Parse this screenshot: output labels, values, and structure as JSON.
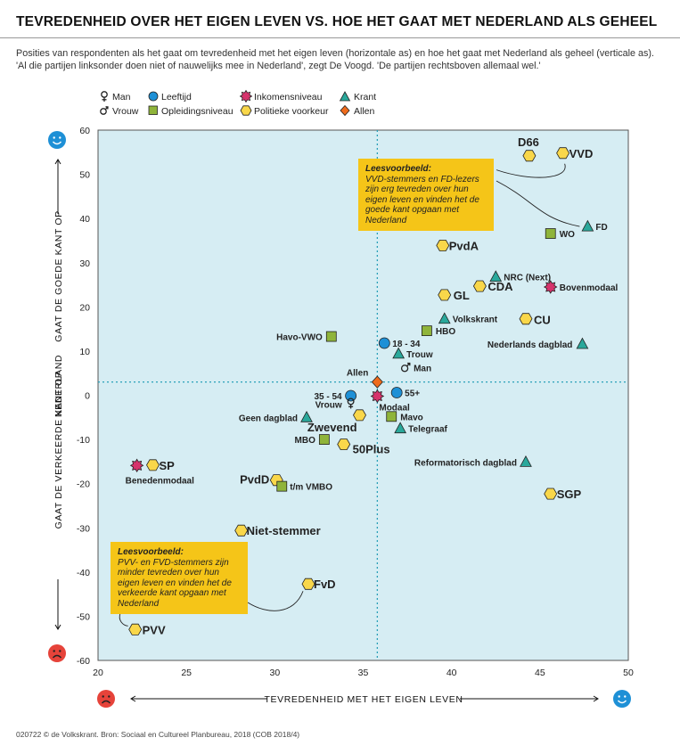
{
  "title": "TEVREDENHEID OVER HET EIGEN LEVEN VS. HOE HET GAAT MET NEDERLAND ALS GEHEEL",
  "subtitle": "Posities van respondenten als het gaat om tevredenheid met het eigen leven (horizontale as) en hoe het gaat met Nederland als geheel (verticale as). 'Al die partijen linksonder doen niet of nauwelijks mee in Nederland', zegt De Voogd. 'De partijen rechtsboven allemaal wel.'",
  "footer": "020722 © de Volkskrant. Bron: Sociaal en Cultureel Planbureau, 2018 (COB 2018/4)",
  "colors": {
    "plot_bg": "#d6edf3",
    "leeftijd": "#1e90d6",
    "inkomensniveau": "#d6336c",
    "krant": "#2aa89b",
    "opleidingsniveau": "#8fb43a",
    "politieke_voorkeur": "#f9d74a",
    "allen": "#ee6b1c",
    "note": "#f5c518",
    "smile_blue": "#1e90d6",
    "frown_red": "#e6433a"
  },
  "legend": {
    "man": "Man",
    "vrouw": "Vrouw",
    "leeftijd": "Leeftijd",
    "opleidingsniveau": "Opleidingsniveau",
    "inkomensniveau": "Inkomensniveau",
    "politieke_voorkeur": "Politieke voorkeur",
    "krant": "Krant",
    "allen": "Allen"
  },
  "notes": {
    "top": {
      "title": "Leesvoorbeeld:",
      "text": "VVD-stemmers en FD-lezers zijn erg tevreden over hun eigen leven en vinden het de goede kant opgaan met Nederland"
    },
    "bottom": {
      "title": "Leesvoorbeeld:",
      "text": "PVV- en FVD-stemmers zijn minder tevreden over hun eigen leven en vinden het de verkeerde kant opgaan met Nederland"
    }
  },
  "chart_data": {
    "type": "scatter",
    "title": "TEVREDENHEID OVER HET EIGEN LEVEN VS. HOE HET GAAT MET NEDERLAND ALS GEHEEL",
    "xlabel": "TEVREDENHEID MET HET EIGEN LEVEN",
    "ylabel_parts": [
      "GAAT DE VERKEERDE KANT OP",
      "NEDERLAND",
      "GAAT DE GOEDE KANT OP"
    ],
    "xlim": [
      20,
      50
    ],
    "ylim": [
      -60,
      60
    ],
    "xticks": [
      20,
      25,
      30,
      35,
      40,
      45,
      50
    ],
    "yticks": [
      60,
      50,
      40,
      30,
      20,
      10,
      0,
      -10,
      -20,
      -30,
      -40,
      -50,
      -60
    ],
    "reference_lines": {
      "x": 35.8,
      "y": 3
    },
    "points": [
      {
        "label": "D66",
        "category": "politieke_voorkeur",
        "x": 44.4,
        "y": 54.2,
        "size": "big",
        "lx": -1,
        "ly": -11,
        "anchor": "middle"
      },
      {
        "label": "VVD",
        "category": "politieke_voorkeur",
        "x": 46.3,
        "y": 54.8,
        "size": "big",
        "lx": 7,
        "ly": 5,
        "anchor": "start"
      },
      {
        "label": "FD",
        "category": "krant",
        "x": 47.7,
        "y": 38.2,
        "size": "small",
        "lx": 9,
        "ly": 4,
        "anchor": "start"
      },
      {
        "label": "WO",
        "category": "opleidingsniveau",
        "x": 45.6,
        "y": 36.6,
        "size": "small",
        "lx": 10,
        "ly": 4,
        "anchor": "start"
      },
      {
        "label": "PvdA",
        "category": "politieke_voorkeur",
        "x": 39.5,
        "y": 33.9,
        "size": "big",
        "lx": 7,
        "ly": 5,
        "anchor": "start"
      },
      {
        "label": "NRC (Next)",
        "category": "krant",
        "x": 42.5,
        "y": 26.8,
        "size": "small",
        "lx": 9,
        "ly": 4,
        "anchor": "start"
      },
      {
        "label": "Bovenmodaal",
        "category": "inkomensniveau",
        "x": 45.6,
        "y": 24.5,
        "size": "small",
        "lx": 10,
        "ly": 4,
        "anchor": "start"
      },
      {
        "label": "CDA",
        "category": "politieke_voorkeur",
        "x": 41.6,
        "y": 24.7,
        "size": "big",
        "lx": 9,
        "ly": 5,
        "anchor": "start"
      },
      {
        "label": "GL",
        "category": "politieke_voorkeur",
        "x": 39.6,
        "y": 22.7,
        "size": "big",
        "lx": 10,
        "ly": 5,
        "anchor": "start"
      },
      {
        "label": "CU",
        "category": "politieke_voorkeur",
        "x": 44.2,
        "y": 17.3,
        "size": "big",
        "lx": 9,
        "ly": 6,
        "anchor": "start"
      },
      {
        "label": "Volkskrant",
        "category": "krant",
        "x": 39.6,
        "y": 17.3,
        "size": "small",
        "lx": 9,
        "ly": 4,
        "anchor": "start"
      },
      {
        "label": "HBO",
        "category": "opleidingsniveau",
        "x": 38.6,
        "y": 14.6,
        "size": "small",
        "lx": 10,
        "ly": 4,
        "anchor": "start"
      },
      {
        "label": "Havo-VWO",
        "category": "opleidingsniveau",
        "x": 33.2,
        "y": 13.3,
        "size": "small",
        "lx": -10,
        "ly": 4,
        "anchor": "end"
      },
      {
        "label": "Nederlands dagblad",
        "category": "krant",
        "x": 47.4,
        "y": 11.6,
        "size": "small",
        "lx": -11,
        "ly": 4,
        "anchor": "end"
      },
      {
        "label": "18 - 34",
        "category": "leeftijd",
        "x": 36.2,
        "y": 11.8,
        "size": "small",
        "lx": 9,
        "ly": 4,
        "anchor": "start"
      },
      {
        "label": "Trouw",
        "category": "krant",
        "x": 37.0,
        "y": 9.4,
        "size": "small",
        "lx": 9,
        "ly": 4,
        "anchor": "start"
      },
      {
        "label": "Man",
        "category": "man",
        "x": 37.4,
        "y": 6.3,
        "size": "small",
        "lx": 9,
        "ly": 4,
        "anchor": "start"
      },
      {
        "label": "Allen",
        "category": "allen",
        "x": 35.8,
        "y": 3.0,
        "size": "small",
        "lx": -10,
        "ly": -7,
        "anchor": "end"
      },
      {
        "label": "35 - 54",
        "category": "leeftijd",
        "x": 34.3,
        "y": -0.1,
        "size": "small",
        "lx": -10,
        "ly": 4,
        "anchor": "end"
      },
      {
        "label": "Modaal",
        "category": "inkomensniveau",
        "x": 35.8,
        "y": -0.2,
        "size": "small",
        "lx": 2,
        "ly": 16,
        "anchor": "start"
      },
      {
        "label": "55+",
        "category": "leeftijd",
        "x": 36.9,
        "y": 0.6,
        "size": "small",
        "lx": 9,
        "ly": 4,
        "anchor": "start"
      },
      {
        "label": "Vrouw",
        "category": "vrouw",
        "x": 34.3,
        "y": -1.8,
        "size": "small",
        "lx": -10,
        "ly": 5,
        "anchor": "end"
      },
      {
        "label": "Zwevend",
        "category": "politieke_voorkeur",
        "x": 34.8,
        "y": -4.5,
        "size": "big",
        "lx": -3,
        "ly": 18,
        "anchor": "end"
      },
      {
        "label": "Geen dagblad",
        "category": "krant",
        "x": 31.8,
        "y": -5.0,
        "size": "small",
        "lx": -10,
        "ly": 4,
        "anchor": "end"
      },
      {
        "label": "Mavo",
        "category": "opleidingsniveau",
        "x": 36.6,
        "y": -4.8,
        "size": "small",
        "lx": 10,
        "ly": 4,
        "anchor": "start"
      },
      {
        "label": "Telegraaf",
        "category": "krant",
        "x": 37.1,
        "y": -7.5,
        "size": "small",
        "lx": 9,
        "ly": 4,
        "anchor": "start"
      },
      {
        "label": "MBO",
        "category": "opleidingsniveau",
        "x": 32.8,
        "y": -10.0,
        "size": "small",
        "lx": -10,
        "ly": 4,
        "anchor": "end"
      },
      {
        "label": "50Plus",
        "category": "politieke_voorkeur",
        "x": 33.9,
        "y": -11.1,
        "size": "big",
        "lx": 10,
        "ly": 10,
        "anchor": "start"
      },
      {
        "label": "Reformatorisch dagblad",
        "category": "krant",
        "x": 44.2,
        "y": -15.1,
        "size": "small",
        "lx": -10,
        "ly": 4,
        "anchor": "end"
      },
      {
        "label": "SP",
        "category": "politieke_voorkeur",
        "x": 23.1,
        "y": -15.8,
        "size": "big",
        "lx": 7,
        "ly": 5,
        "anchor": "start"
      },
      {
        "label": "Benedenmodaal",
        "category": "inkomensniveau",
        "x": 22.2,
        "y": -15.9,
        "size": "small",
        "lx": -13,
        "ly": 20,
        "anchor": "start"
      },
      {
        "label": "PvdD",
        "category": "politieke_voorkeur",
        "x": 30.1,
        "y": -19.2,
        "size": "big",
        "lx": -8,
        "ly": 4,
        "anchor": "end"
      },
      {
        "label": "t/m VMBO",
        "category": "opleidingsniveau",
        "x": 30.4,
        "y": -20.6,
        "size": "small",
        "lx": 9,
        "ly": 4,
        "anchor": "start"
      },
      {
        "label": "SGP",
        "category": "politieke_voorkeur",
        "x": 45.6,
        "y": -22.3,
        "size": "big",
        "lx": 7,
        "ly": 5,
        "anchor": "start"
      },
      {
        "label": "Niet-stemmer",
        "category": "politieke_voorkeur",
        "x": 28.1,
        "y": -30.6,
        "size": "big",
        "lx": 6,
        "ly": 5,
        "anchor": "start"
      },
      {
        "label": "FvD",
        "category": "politieke_voorkeur",
        "x": 31.9,
        "y": -42.7,
        "size": "big",
        "lx": 6,
        "ly": 5,
        "anchor": "start"
      },
      {
        "label": "PVV",
        "category": "politieke_voorkeur",
        "x": 22.1,
        "y": -53.0,
        "size": "big",
        "lx": 8,
        "ly": 5,
        "anchor": "start"
      }
    ]
  }
}
